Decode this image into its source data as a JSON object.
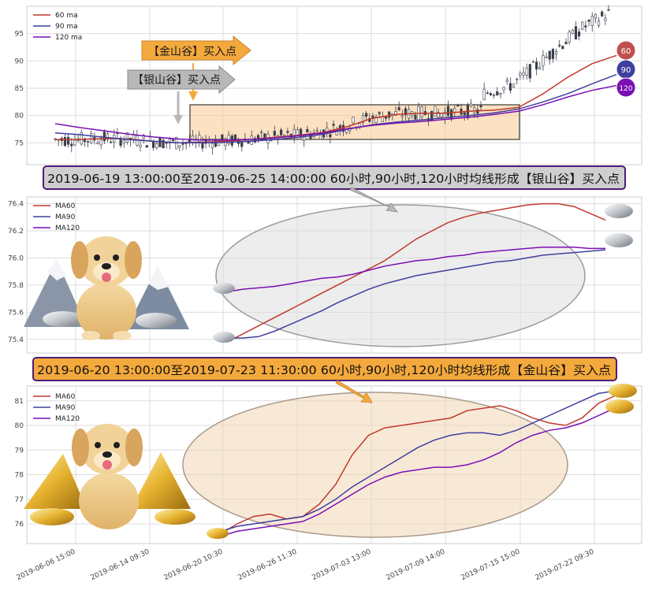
{
  "panel_top": {
    "legend": [
      "60 ma",
      "90 ma",
      "120 ma"
    ],
    "y_ticks": [
      75,
      80,
      85,
      90,
      95
    ],
    "ylim": [
      71,
      100
    ],
    "colors": {
      "ma60": "#c0392b",
      "ma90": "#3f3f9f",
      "ma120": "#7a0fb4",
      "candle": "#3a3f4a",
      "box": "#f9c98f"
    },
    "badges": [
      "60",
      "90",
      "120"
    ],
    "annotation_gold": "【金山谷】买入点",
    "annotation_silver": "【银山谷】买入点"
  },
  "banner_silver": "2019-06-19 13:00:00至2019-06-25 14:00:00 60小时,90小时,120小时均线形成【银山谷】买入点",
  "banner_gold": "2019-06-20 13:00:00至2019-07-23 11:30:00 60小时,90小时,120小时均线形成【金山谷】买入点",
  "x_tick_labels": [
    "2019-06-06 15:00",
    "2019-06-14 09:30",
    "2019-06-20 10:30",
    "2019-06-26 11:30",
    "2019-07-03 13:00",
    "2019-07-09 14:00",
    "2019-07-15 15:00",
    "2019-07-22 09:30"
  ],
  "chart_data": [
    {
      "type": "line",
      "note_series": "candlestick price with moving averages",
      "series": [
        {
          "name": "60 ma",
          "values": [
            75.6,
            75.6,
            75.8,
            75.7,
            75.3,
            75.0,
            75.1,
            75.3,
            75.6,
            76.0,
            76.4,
            76.9,
            78.0,
            79.5,
            80.2,
            80.4,
            80.4,
            80.8,
            81.0,
            81.5,
            84.0,
            87.0,
            89.5,
            91.0
          ]
        },
        {
          "name": "90 ma",
          "values": [
            76.8,
            76.5,
            76.0,
            75.6,
            75.3,
            75.0,
            75.0,
            75.1,
            75.3,
            75.6,
            76.0,
            76.6,
            77.5,
            78.3,
            78.8,
            79.2,
            79.6,
            80.0,
            80.5,
            81.2,
            82.5,
            84.0,
            85.8,
            87.5
          ]
        },
        {
          "name": "120 ma",
          "values": [
            78.5,
            77.8,
            77.2,
            76.6,
            76.1,
            75.7,
            75.5,
            75.5,
            75.6,
            75.9,
            76.3,
            76.8,
            77.6,
            78.2,
            78.6,
            78.9,
            79.3,
            79.7,
            80.2,
            80.8,
            82.0,
            83.4,
            84.6,
            85.5
          ]
        }
      ]
    },
    {
      "type": "line",
      "ylim": [
        75.3,
        76.45
      ],
      "y_ticks": [
        75.4,
        75.6,
        75.8,
        76.0,
        76.2,
        76.4
      ],
      "series": [
        {
          "name": "MA60",
          "values": [
            75.38,
            75.44,
            75.5,
            75.56,
            75.62,
            75.68,
            75.74,
            75.8,
            75.86,
            75.92,
            75.98,
            76.06,
            76.14,
            76.2,
            76.26,
            76.3,
            76.33,
            76.35,
            76.37,
            76.39,
            76.4,
            76.4,
            76.38,
            76.33,
            76.28
          ]
        },
        {
          "name": "MA90",
          "values": [
            75.41,
            75.41,
            75.42,
            75.46,
            75.51,
            75.56,
            75.61,
            75.67,
            75.72,
            75.77,
            75.81,
            75.84,
            75.87,
            75.89,
            75.91,
            75.93,
            75.95,
            75.97,
            75.98,
            76.0,
            76.02,
            76.03,
            76.04,
            76.05,
            76.06
          ]
        },
        {
          "name": "MA120",
          "values": [
            75.75,
            75.77,
            75.78,
            75.79,
            75.81,
            75.83,
            75.85,
            75.86,
            75.88,
            75.91,
            75.94,
            75.96,
            75.98,
            75.99,
            76.01,
            76.02,
            76.04,
            76.05,
            76.06,
            76.07,
            76.08,
            76.08,
            76.08,
            76.07,
            76.07
          ]
        }
      ]
    },
    {
      "type": "line",
      "ylim": [
        75.2,
        81.6
      ],
      "y_ticks": [
        76,
        77,
        78,
        79,
        80,
        81
      ],
      "series": [
        {
          "name": "MA60",
          "values": [
            75.6,
            76.0,
            76.3,
            76.4,
            76.2,
            76.3,
            76.8,
            77.6,
            78.8,
            79.6,
            79.9,
            80.0,
            80.1,
            80.2,
            80.3,
            80.6,
            80.7,
            80.8,
            80.6,
            80.3,
            80.1,
            80.0,
            80.3,
            80.9,
            81.2
          ]
        },
        {
          "name": "MA90",
          "values": [
            75.7,
            75.9,
            76.0,
            76.1,
            76.2,
            76.3,
            76.6,
            77.0,
            77.5,
            77.9,
            78.3,
            78.7,
            79.1,
            79.4,
            79.6,
            79.7,
            79.7,
            79.6,
            79.8,
            80.1,
            80.4,
            80.7,
            81.0,
            81.3,
            81.4
          ]
        },
        {
          "name": "MA120",
          "values": [
            75.5,
            75.7,
            75.8,
            75.9,
            76.0,
            76.1,
            76.4,
            76.8,
            77.2,
            77.6,
            77.9,
            78.1,
            78.2,
            78.3,
            78.3,
            78.4,
            78.6,
            78.9,
            79.3,
            79.6,
            79.8,
            79.9,
            80.1,
            80.4,
            80.7
          ]
        }
      ]
    }
  ]
}
